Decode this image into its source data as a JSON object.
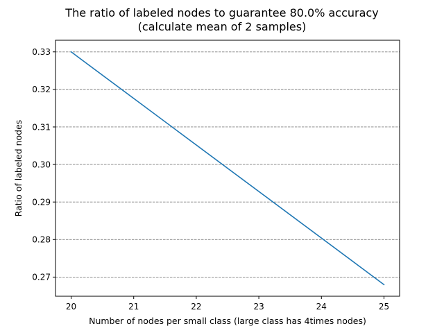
{
  "chart_data": {
    "type": "line",
    "title_lines": [
      "The ratio of labeled nodes to guarantee 80.0% accuracy",
      "(calculate mean of 2 samples)"
    ],
    "xlabel": "Number of nodes per small class (large class has 4times nodes)",
    "ylabel": "Ratio of labeled nodes",
    "x": [
      20,
      25
    ],
    "series": [
      {
        "values": [
          0.33,
          0.268
        ],
        "color": "#1f77b4"
      }
    ],
    "xlim": [
      19.75,
      25.25
    ],
    "ylim": [
      0.2649,
      0.3331
    ],
    "x_ticks": [
      20,
      21,
      22,
      23,
      24,
      25
    ],
    "x_tick_labels": [
      "20",
      "21",
      "22",
      "23",
      "24",
      "25"
    ],
    "y_ticks": [
      0.27,
      0.28,
      0.29,
      0.3,
      0.31,
      0.32,
      0.33
    ],
    "y_tick_labels": [
      "0.27",
      "0.28",
      "0.29",
      "0.30",
      "0.31",
      "0.32",
      "0.33"
    ],
    "grid": "horizontal-dashed",
    "grid_color": "#808080"
  }
}
